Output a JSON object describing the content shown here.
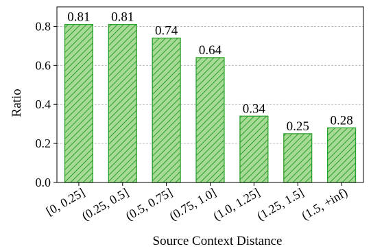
{
  "chart_data": {
    "type": "bar",
    "categories": [
      "[0, 0.25]",
      "(0.25, 0.5]",
      "(0.5, 0.75]",
      "(0.75, 1.0]",
      "(1.0, 1.25]",
      "(1.25, 1.5]",
      "(1.5, +inf)"
    ],
    "values": [
      0.81,
      0.81,
      0.74,
      0.64,
      0.34,
      0.25,
      0.28
    ],
    "value_labels": [
      "0.81",
      "0.81",
      "0.74",
      "0.64",
      "0.34",
      "0.25",
      "0.28"
    ],
    "xlabel": "Source Context Distance",
    "ylabel": "Ratio",
    "ylim": [
      0,
      0.9
    ],
    "yticks": [
      0.0,
      0.2,
      0.4,
      0.6,
      0.8
    ],
    "ytick_labels": [
      "0.0",
      "0.2",
      "0.4",
      "0.6",
      "0.8"
    ],
    "grid": "horizontal dashed",
    "bar_fill": "#a6da95",
    "bar_edge": "#2ca02c",
    "hatch": "diagonal"
  }
}
